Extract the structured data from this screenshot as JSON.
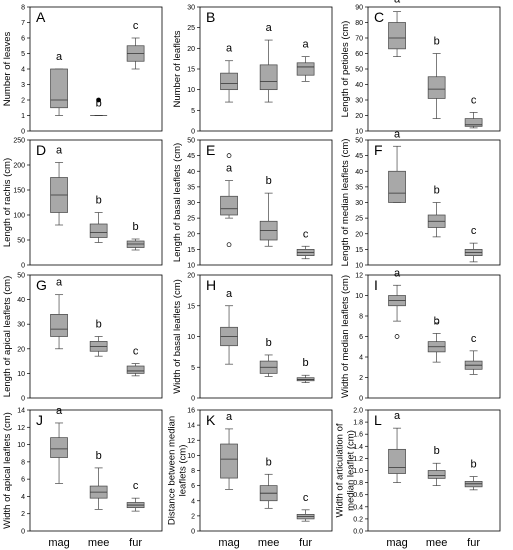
{
  "chart_data": [
    {
      "type": "box",
      "letter": "A",
      "ylabel": "Number of leaves",
      "ylim": [
        0,
        8
      ],
      "yticks": [
        0,
        1,
        2,
        3,
        4,
        5,
        6,
        7,
        8
      ],
      "boxes": [
        {
          "cat": "mag",
          "min": 1,
          "q1": 1.5,
          "med": 2,
          "q3": 4,
          "max": 4,
          "sig": "a"
        },
        {
          "cat": "mee",
          "min": 1,
          "q1": 1,
          "med": 1,
          "q3": 1,
          "max": 1,
          "sig": "b"
        },
        {
          "cat": "fur",
          "min": 4,
          "q1": 4.5,
          "med": 5,
          "q3": 5.5,
          "max": 6,
          "sig": "c"
        }
      ],
      "outliers": [
        {
          "cat": "mee",
          "value": 2,
          "marker": "filled"
        }
      ]
    },
    {
      "type": "box",
      "letter": "B",
      "ylabel": "Number of leaflets",
      "ylim": [
        0,
        30
      ],
      "yticks": [
        0,
        5,
        10,
        15,
        20,
        25,
        30
      ],
      "boxes": [
        {
          "cat": "mag",
          "min": 7,
          "q1": 10,
          "med": 11.5,
          "q3": 14,
          "max": 17,
          "sig": "a"
        },
        {
          "cat": "mee",
          "min": 7,
          "q1": 10,
          "med": 12,
          "q3": 16,
          "max": 22,
          "sig": "a"
        },
        {
          "cat": "fur",
          "min": 12,
          "q1": 13.5,
          "med": 15.5,
          "q3": 16.5,
          "max": 18,
          "sig": "a"
        }
      ],
      "outliers": []
    },
    {
      "type": "box",
      "letter": "C",
      "ylabel": "Length of petioles (cm)",
      "ylim": [
        10,
        90
      ],
      "yticks": [
        10,
        20,
        30,
        40,
        50,
        60,
        70,
        80,
        90
      ],
      "boxes": [
        {
          "cat": "mag",
          "min": 58,
          "q1": 63,
          "med": 70,
          "q3": 80,
          "max": 87,
          "sig": "a"
        },
        {
          "cat": "mee",
          "min": 18,
          "q1": 31,
          "med": 37,
          "q3": 45,
          "max": 60,
          "sig": "b"
        },
        {
          "cat": "fur",
          "min": 12,
          "q1": 13,
          "med": 14,
          "q3": 18,
          "max": 22,
          "sig": "c"
        }
      ],
      "outliers": []
    },
    {
      "type": "box",
      "letter": "D",
      "ylabel": "Length of rachis (cm)",
      "ylim": [
        0,
        250
      ],
      "yticks": [
        0,
        50,
        100,
        150,
        200,
        250
      ],
      "boxes": [
        {
          "cat": "mag",
          "min": 80,
          "q1": 105,
          "med": 140,
          "q3": 175,
          "max": 205,
          "sig": "a"
        },
        {
          "cat": "mee",
          "min": 45,
          "q1": 55,
          "med": 65,
          "q3": 82,
          "max": 105,
          "sig": "b"
        },
        {
          "cat": "fur",
          "min": 30,
          "q1": 35,
          "med": 42,
          "q3": 48,
          "max": 52,
          "sig": "b"
        }
      ],
      "outliers": []
    },
    {
      "type": "box",
      "letter": "E",
      "ylabel": "Length of basal leaflets (cm)",
      "ylim": [
        10,
        50
      ],
      "yticks": [
        10,
        15,
        20,
        25,
        30,
        35,
        40,
        45,
        50
      ],
      "boxes": [
        {
          "cat": "mag",
          "min": 25,
          "q1": 26,
          "med": 28,
          "q3": 32,
          "max": 37,
          "sig": "a"
        },
        {
          "cat": "mee",
          "min": 16,
          "q1": 18,
          "med": 21,
          "q3": 24,
          "max": 33,
          "sig": "b"
        },
        {
          "cat": "fur",
          "min": 12,
          "q1": 13,
          "med": 14,
          "q3": 15,
          "max": 16,
          "sig": "c"
        }
      ],
      "outliers": [
        {
          "cat": "mag",
          "value": 45,
          "marker": "open"
        },
        {
          "cat": "mag",
          "value": 16.5,
          "marker": "open"
        }
      ]
    },
    {
      "type": "box",
      "letter": "F",
      "ylabel": "Length of median leaflets (cm)",
      "ylim": [
        10,
        50
      ],
      "yticks": [
        10,
        15,
        20,
        25,
        30,
        35,
        40,
        45,
        50
      ],
      "boxes": [
        {
          "cat": "mag",
          "min": 30,
          "q1": 30,
          "med": 33,
          "q3": 40,
          "max": 48,
          "sig": "a"
        },
        {
          "cat": "mee",
          "min": 19,
          "q1": 22,
          "med": 24,
          "q3": 26,
          "max": 30,
          "sig": "b"
        },
        {
          "cat": "fur",
          "min": 11,
          "q1": 13,
          "med": 14,
          "q3": 15,
          "max": 17,
          "sig": "c"
        }
      ],
      "outliers": []
    },
    {
      "type": "box",
      "letter": "G",
      "ylabel": "Length of apical leaflets (cm)",
      "ylim": [
        0,
        50
      ],
      "yticks": [
        0,
        10,
        20,
        30,
        40,
        50
      ],
      "boxes": [
        {
          "cat": "mag",
          "min": 20,
          "q1": 25,
          "med": 28,
          "q3": 34,
          "max": 42,
          "sig": "a"
        },
        {
          "cat": "mee",
          "min": 17,
          "q1": 19,
          "med": 21,
          "q3": 23,
          "max": 25,
          "sig": "b"
        },
        {
          "cat": "fur",
          "min": 9,
          "q1": 10,
          "med": 11,
          "q3": 13,
          "max": 14,
          "sig": "c"
        }
      ],
      "outliers": []
    },
    {
      "type": "box",
      "letter": "H",
      "ylabel": "Width of basal leaflets (cm)",
      "ylim": [
        0,
        20
      ],
      "yticks": [
        0,
        5,
        10,
        15,
        20
      ],
      "boxes": [
        {
          "cat": "mag",
          "min": 5.5,
          "q1": 8.5,
          "med": 10,
          "q3": 11.5,
          "max": 15,
          "sig": "a"
        },
        {
          "cat": "mee",
          "min": 3.5,
          "q1": 4,
          "med": 5,
          "q3": 6,
          "max": 7,
          "sig": "b"
        },
        {
          "cat": "fur",
          "min": 2.5,
          "q1": 2.8,
          "med": 3,
          "q3": 3.3,
          "max": 3.7,
          "sig": "b"
        }
      ],
      "outliers": []
    },
    {
      "type": "box",
      "letter": "I",
      "ylabel": "Width of median leaflets (cm)",
      "ylim": [
        0,
        12
      ],
      "yticks": [
        0,
        2,
        4,
        6,
        8,
        10,
        12
      ],
      "boxes": [
        {
          "cat": "mag",
          "min": 7.5,
          "q1": 9,
          "med": 9.5,
          "q3": 10,
          "max": 11,
          "sig": "a"
        },
        {
          "cat": "mee",
          "min": 3.5,
          "q1": 4.5,
          "med": 5,
          "q3": 5.5,
          "max": 6.3,
          "sig": "b"
        },
        {
          "cat": "fur",
          "min": 2.3,
          "q1": 2.8,
          "med": 3.2,
          "q3": 3.6,
          "max": 4.6,
          "sig": "c"
        }
      ],
      "outliers": [
        {
          "cat": "mag",
          "value": 6,
          "marker": "open"
        },
        {
          "cat": "mee",
          "value": 7.5,
          "marker": "open"
        }
      ]
    },
    {
      "type": "box",
      "letter": "J",
      "ylabel": "Width of apical leaflets (cm)",
      "ylim": [
        0,
        14
      ],
      "yticks": [
        0,
        2,
        4,
        6,
        8,
        10,
        12,
        14
      ],
      "boxes": [
        {
          "cat": "mag",
          "min": 5.5,
          "q1": 8.5,
          "med": 9.5,
          "q3": 10.8,
          "max": 12.5,
          "sig": "a"
        },
        {
          "cat": "mee",
          "min": 2.5,
          "q1": 3.8,
          "med": 4.5,
          "q3": 5.2,
          "max": 7.3,
          "sig": "b"
        },
        {
          "cat": "fur",
          "min": 2.3,
          "q1": 2.7,
          "med": 3,
          "q3": 3.3,
          "max": 3.8,
          "sig": "c"
        }
      ],
      "outliers": []
    },
    {
      "type": "box",
      "letter": "K",
      "ylabel": "Distance between median leaflets (cm)",
      "ylim": [
        0,
        16
      ],
      "yticks": [
        0,
        2,
        4,
        6,
        8,
        10,
        12,
        14,
        16
      ],
      "boxes": [
        {
          "cat": "mag",
          "min": 5.5,
          "q1": 7,
          "med": 9.5,
          "q3": 11.5,
          "max": 13.5,
          "sig": "a"
        },
        {
          "cat": "mee",
          "min": 3,
          "q1": 4,
          "med": 5,
          "q3": 6,
          "max": 7.5,
          "sig": "b"
        },
        {
          "cat": "fur",
          "min": 1.3,
          "q1": 1.6,
          "med": 1.9,
          "q3": 2.2,
          "max": 2.8,
          "sig": "c"
        }
      ],
      "outliers": []
    },
    {
      "type": "box",
      "letter": "L",
      "ylabel": "Width of articulation of median leaflet (cm)",
      "ylim": [
        0,
        2
      ],
      "yticks": [
        0,
        0.2,
        0.4,
        0.6,
        0.8,
        1.0,
        1.2,
        1.4,
        1.6,
        1.8,
        2.0
      ],
      "boxes": [
        {
          "cat": "mag",
          "min": 0.8,
          "q1": 0.95,
          "med": 1.05,
          "q3": 1.35,
          "max": 1.7,
          "sig": "a"
        },
        {
          "cat": "mee",
          "min": 0.75,
          "q1": 0.87,
          "med": 0.92,
          "q3": 1.0,
          "max": 1.12,
          "sig": "b"
        },
        {
          "cat": "fur",
          "min": 0.68,
          "q1": 0.73,
          "med": 0.78,
          "q3": 0.82,
          "max": 0.9,
          "sig": "b"
        }
      ],
      "outliers": []
    }
  ],
  "x_categories": [
    "mag",
    "mee",
    "fur"
  ]
}
